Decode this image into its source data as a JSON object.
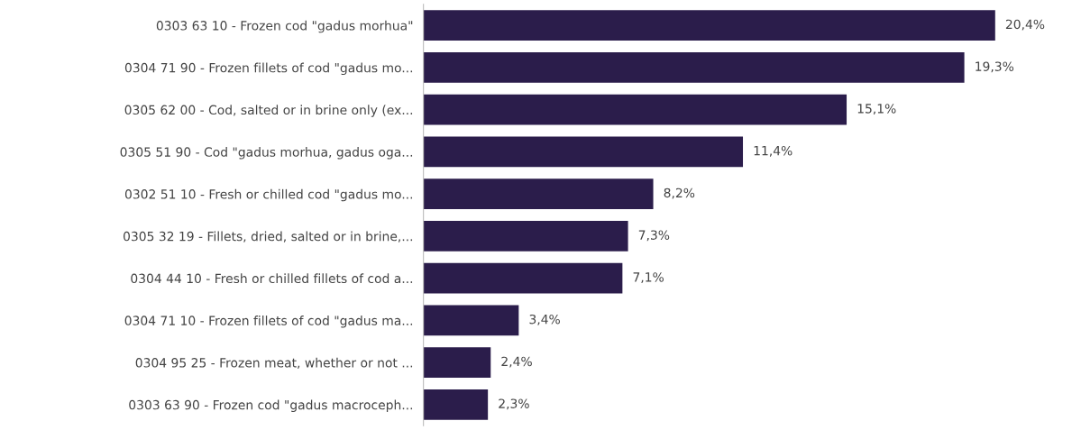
{
  "chart_data": {
    "type": "bar",
    "orientation": "horizontal",
    "categories": [
      "0303 63 10 - Frozen cod \"gadus morhua\"",
      "0304 71 90 - Frozen fillets of cod \"gadus mo...",
      "0305 62 00 - Cod, salted or in brine only (ex...",
      "0305 51 90 - Cod \"gadus morhua, gadus oga...",
      "0302 51 10 - Fresh or chilled cod \"gadus mo...",
      "0305 32 19 - Fillets, dried, salted or in brine,...",
      "0304 44 10 - Fresh or chilled fillets of cod a...",
      "0304 71 10 - Frozen fillets of cod \"gadus ma...",
      "0304 95 25 - Frozen meat, whether or not ...",
      "0303 63 90 - Frozen cod \"gadus macroceph..."
    ],
    "values": [
      20.4,
      19.3,
      15.1,
      11.4,
      8.2,
      7.3,
      7.1,
      3.4,
      2.4,
      2.3
    ],
    "value_labels": [
      "20,4%",
      "19,3%",
      "15,1%",
      "11,4%",
      "8,2%",
      "7,3%",
      "7,1%",
      "3,4%",
      "2,4%",
      "2,3%"
    ],
    "color": "#2b1d4b",
    "grid": false,
    "legend": false
  }
}
